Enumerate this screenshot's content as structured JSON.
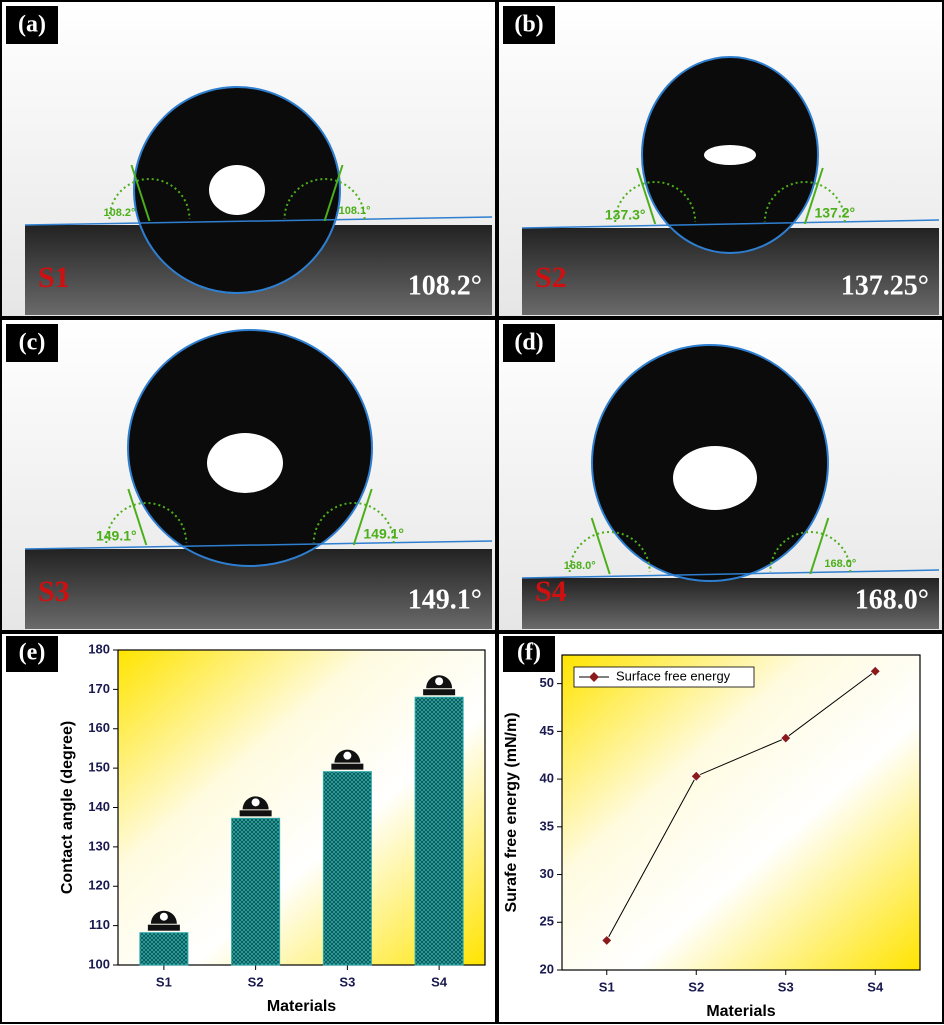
{
  "panels": [
    {
      "label": "(a)",
      "sample": "S1",
      "angle": "108.2°",
      "left_angle": "108.2°",
      "right_angle": "108.1°"
    },
    {
      "label": "(b)",
      "sample": "S2",
      "angle": "137.25°",
      "left_angle": "137.3°",
      "right_angle": "137.2°"
    },
    {
      "label": "(c)",
      "sample": "S3",
      "angle": "149.1°",
      "left_angle": "149.1°",
      "right_angle": "149.1°"
    },
    {
      "label": "(d)",
      "sample": "S4",
      "angle": "168.0°",
      "left_angle": "168.0°",
      "right_angle": "168.0°"
    }
  ],
  "chart_data": [
    {
      "type": "bar",
      "panel_label": "(e)",
      "categories": [
        "S1",
        "S2",
        "S3",
        "S4"
      ],
      "values": [
        108.2,
        137.25,
        149.1,
        168.0
      ],
      "color": "#2aa9a9",
      "ylim": [
        100,
        180
      ],
      "yticks": [
        100,
        110,
        120,
        130,
        140,
        150,
        160,
        170,
        180
      ],
      "x_label": "Materials",
      "y_label": "Contact angle (degree)"
    },
    {
      "type": "line",
      "panel_label": "(f)",
      "categories": [
        "S1",
        "S2",
        "S3",
        "S4"
      ],
      "series": [
        {
          "name": "Surface free energy",
          "color": "#8b1a1a",
          "values": [
            23.1,
            40.3,
            44.3,
            51.3
          ]
        }
      ],
      "ylim": [
        20,
        53
      ],
      "yticks": [
        20,
        25,
        30,
        35,
        40,
        45,
        50
      ],
      "x_label": "Materials",
      "y_label": "Surafe free energy (mN/m)",
      "legend": "top-left"
    }
  ]
}
